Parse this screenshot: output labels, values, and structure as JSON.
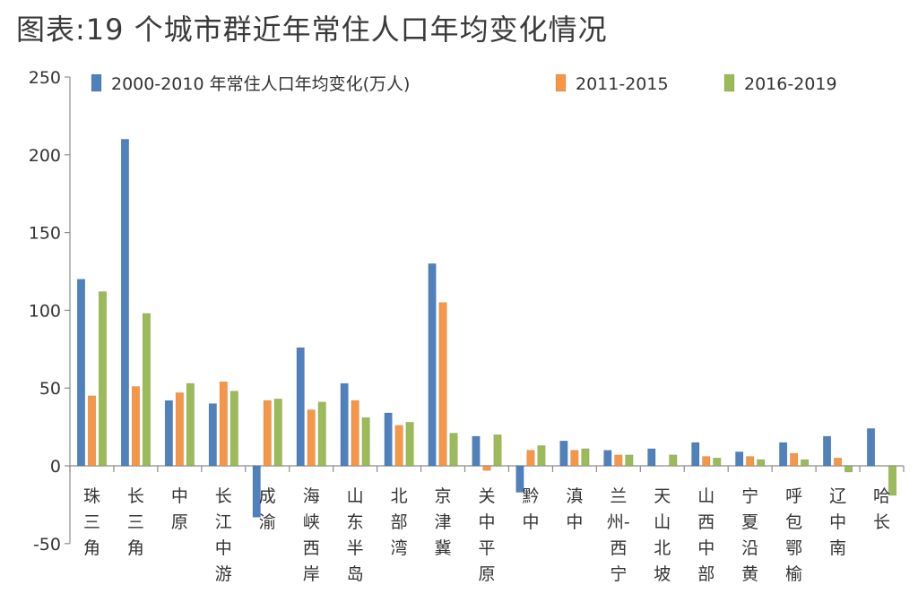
{
  "title": "图表:19 个城市群近年常住人口年均变化情况",
  "chart_data": {
    "type": "bar",
    "title": "图表:19 个城市群近年常住人口年均变化情况",
    "xlabel": "",
    "ylabel": "",
    "ylim": [
      -50,
      250
    ],
    "yticks": [
      -50,
      0,
      50,
      100,
      150,
      200,
      250
    ],
    "grid": false,
    "legend_position": "top",
    "categories": [
      "珠三角",
      "长三角",
      "中原",
      "长江中游",
      "成渝",
      "海峡西岸",
      "山东半岛",
      "北部湾",
      "京津冀",
      "关中平原",
      "黔中",
      "滇中",
      "兰州-西宁",
      "天山北坡",
      "山西中部",
      "宁夏沿黄",
      "呼包鄂榆",
      "辽中南",
      "哈长"
    ],
    "category_lines": [
      [
        "珠",
        "三",
        "角"
      ],
      [
        "长",
        "三",
        "角"
      ],
      [
        "中",
        "原"
      ],
      [
        "长",
        "江",
        "中",
        "游"
      ],
      [
        "成",
        "渝"
      ],
      [
        "海",
        "峡",
        "西",
        "岸"
      ],
      [
        "山",
        "东",
        "半",
        "岛"
      ],
      [
        "北",
        "部",
        "湾"
      ],
      [
        "京",
        "津",
        "冀"
      ],
      [
        "关",
        "中",
        "平",
        "原"
      ],
      [
        "黔",
        "中"
      ],
      [
        "滇",
        "中"
      ],
      [
        "兰",
        "州-",
        "西",
        "宁"
      ],
      [
        "天",
        "山",
        "北",
        "坡"
      ],
      [
        "山",
        "西",
        "中",
        "部"
      ],
      [
        "宁",
        "夏",
        "沿",
        "黄"
      ],
      [
        "呼",
        "包",
        "鄂",
        "榆"
      ],
      [
        "辽",
        "中",
        "南"
      ],
      [
        "哈",
        "长"
      ]
    ],
    "series": [
      {
        "name": "2000-2010 年常住人口年均变化(万人)",
        "color": "#4f81bd",
        "values": [
          120,
          210,
          42,
          40,
          -33,
          76,
          53,
          34,
          130,
          19,
          -17,
          16,
          10,
          11,
          15,
          9,
          15,
          19,
          24
        ]
      },
      {
        "name": "2011-2015",
        "color": "#f79646",
        "values": [
          45,
          51,
          47,
          54,
          42,
          36,
          42,
          26,
          105,
          -3,
          10,
          10,
          7,
          0,
          6,
          6,
          8,
          5,
          0
        ]
      },
      {
        "name": "2016-2019",
        "color": "#9bbb59",
        "values": [
          112,
          98,
          53,
          48,
          43,
          41,
          31,
          28,
          21,
          20,
          13,
          11,
          7,
          7,
          5,
          4,
          4,
          -4,
          -19
        ]
      }
    ]
  }
}
